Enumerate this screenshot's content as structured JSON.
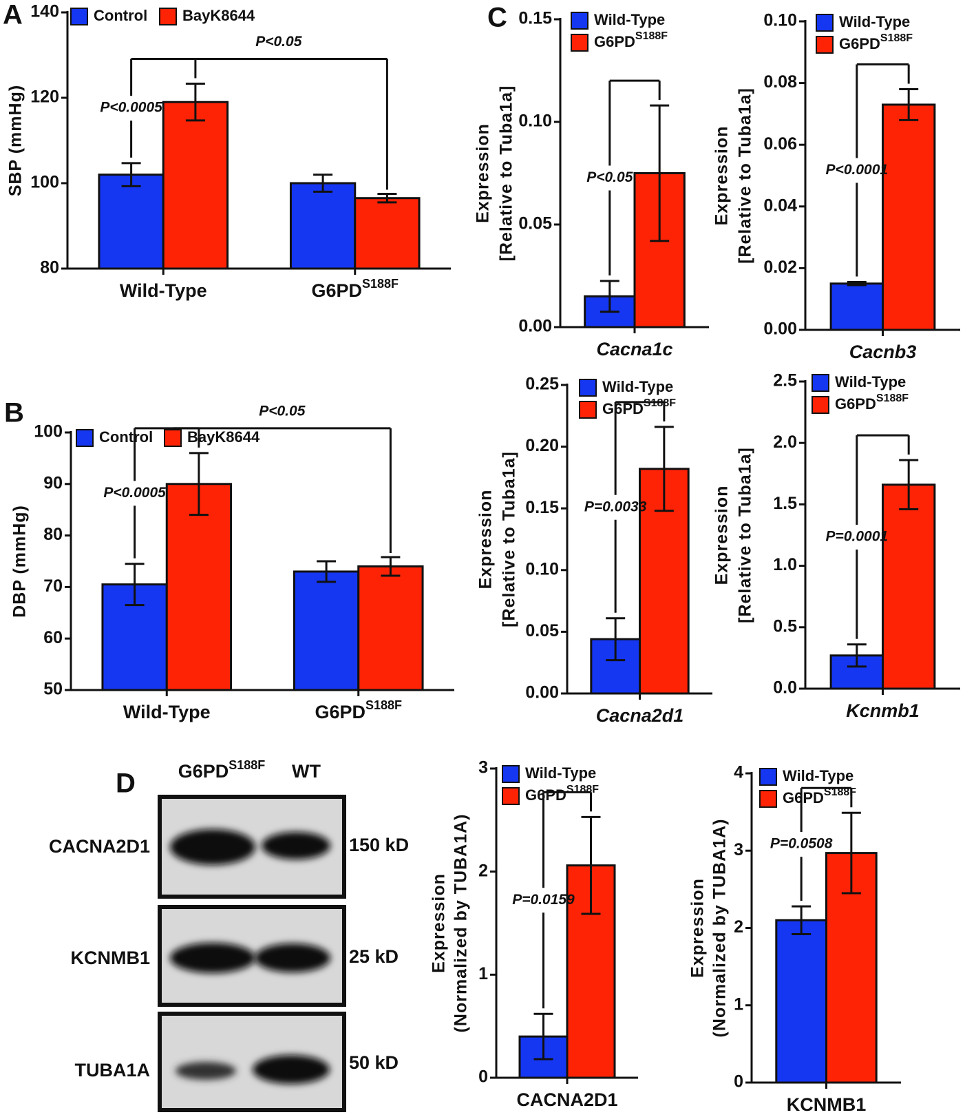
{
  "chart_data": [
    {
      "type": "bar",
      "panel": "A",
      "ylabel": "SBP (mmHg)",
      "categories": [
        "Wild-Type",
        "G6PD"
      ],
      "category_superscripts": [
        null,
        "S188F"
      ],
      "series": [
        {
          "name": "Control",
          "color": "#1537f2",
          "values": [
            102,
            100
          ],
          "errors": [
            2.7,
            2
          ]
        },
        {
          "name": "BayK8644",
          "color": "#ff2306",
          "values": [
            119,
            96.5
          ],
          "errors": [
            4.3,
            1
          ]
        }
      ],
      "ylim": [
        80,
        140
      ],
      "yticks": [
        80,
        100,
        120,
        140
      ],
      "annotations": [
        "P<0.0005",
        "P<0.05"
      ],
      "legend": "top-left"
    },
    {
      "type": "bar",
      "panel": "B",
      "ylabel": "DBP (mmHg)",
      "categories": [
        "Wild-Type",
        "G6PD"
      ],
      "category_superscripts": [
        null,
        "S188F"
      ],
      "series": [
        {
          "name": "Control",
          "color": "#1537f2",
          "values": [
            70.5,
            73
          ],
          "errors": [
            4,
            2
          ]
        },
        {
          "name": "BayK8644",
          "color": "#ff2306",
          "values": [
            90,
            74
          ],
          "errors": [
            6,
            1.8
          ]
        }
      ],
      "ylim": [
        50,
        100
      ],
      "yticks": [
        50,
        60,
        70,
        80,
        90,
        100
      ],
      "annotations": [
        "P<0.0005",
        "P<0.05"
      ],
      "legend": "top-left"
    },
    {
      "type": "bar",
      "panel": "C",
      "ylabel": [
        "Expression",
        "[Relative to Tuba1a]"
      ],
      "categories": [
        "Cacna1c"
      ],
      "series": [
        {
          "name": "Wild-Type",
          "color": "#1537f2",
          "values": [
            0.015
          ],
          "errors": [
            0.0075
          ]
        },
        {
          "name": "G6PD",
          "name_superscript": "S188F",
          "color": "#ff2306",
          "values": [
            0.075
          ],
          "errors": [
            0.033
          ]
        }
      ],
      "ylim": [
        0,
        0.15
      ],
      "yticks": [
        {
          "value": 0,
          "label": "0.00"
        },
        0.05,
        {
          "value": 0.1,
          "label": "0.10"
        },
        0.15
      ],
      "annotations": [
        "P<0.05"
      ],
      "legend": "top-left"
    },
    {
      "type": "bar",
      "ylabel": [
        "Expression",
        "[Relative to Tuba1a]"
      ],
      "categories": [
        "Cacnb3"
      ],
      "series": [
        {
          "name": "Wild-Type",
          "color": "#1537f2",
          "values": [
            0.015
          ],
          "errors": [
            0.0005
          ]
        },
        {
          "name": "G6PD",
          "name_superscript": "S188F",
          "color": "#ff2306",
          "values": [
            0.073
          ],
          "errors": [
            0.005
          ]
        }
      ],
      "ylim": [
        0,
        0.1
      ],
      "yticks": [
        {
          "value": 0,
          "label": "0.00"
        },
        0.02,
        0.04,
        0.06,
        0.08,
        {
          "value": 0.1,
          "label": "0.10"
        }
      ],
      "annotations": [
        "P<0.0001"
      ],
      "legend": "top-left"
    },
    {
      "type": "bar",
      "ylabel": [
        "Expression",
        "[Relative to Tuba1a]"
      ],
      "categories": [
        "Cacna2d1"
      ],
      "series": [
        {
          "name": "Wild-Type",
          "color": "#1537f2",
          "values": [
            0.044
          ],
          "errors": [
            0.017
          ]
        },
        {
          "name": "G6PD",
          "name_superscript": "S188F",
          "color": "#ff2306",
          "values": [
            0.182
          ],
          "errors": [
            0.034
          ]
        }
      ],
      "ylim": [
        0,
        0.25
      ],
      "yticks": [
        {
          "value": 0,
          "label": "0.00"
        },
        0.05,
        {
          "value": 0.1,
          "label": "0.10"
        },
        0.15,
        {
          "value": 0.2,
          "label": "0.20"
        },
        0.25
      ],
      "annotations": [
        "P=0.0033"
      ],
      "legend": "top-left"
    },
    {
      "type": "bar",
      "ylabel": [
        "Expression",
        "[Relative to Tuba1a]"
      ],
      "categories": [
        "Kcnmb1"
      ],
      "series": [
        {
          "name": "Wild-Type",
          "color": "#1537f2",
          "values": [
            0.27
          ],
          "errors": [
            0.09
          ]
        },
        {
          "name": "G6PD",
          "name_superscript": "S188F",
          "color": "#ff2306",
          "values": [
            1.66
          ],
          "errors": [
            0.2
          ]
        }
      ],
      "ylim": [
        0,
        2.5
      ],
      "yticks": [
        {
          "value": 0,
          "label": "0.0"
        },
        0.5,
        {
          "value": 1,
          "label": "1.0"
        },
        1.5,
        {
          "value": 2,
          "label": "2.0"
        },
        2.5
      ],
      "annotations": [
        "P=0.0001"
      ],
      "legend": "top-left"
    },
    {
      "type": "bar",
      "ylabel": [
        "Expression",
        "(Normalized by TUBA1A)"
      ],
      "categories": [
        "CACNA2D1"
      ],
      "series": [
        {
          "name": "Wild-Type",
          "color": "#1537f2",
          "values": [
            0.4
          ],
          "errors": [
            0.22
          ]
        },
        {
          "name": "G6PD",
          "name_superscript": "S188F",
          "color": "#ff2306",
          "values": [
            2.06
          ],
          "errors": [
            0.47
          ]
        }
      ],
      "ylim": [
        0,
        3
      ],
      "yticks": [
        0,
        1,
        2,
        3
      ],
      "annotations": [
        "P=0.0159"
      ],
      "legend": "top-left"
    },
    {
      "type": "bar",
      "ylabel": [
        "Expression",
        "(Normalized by TUBA1A)"
      ],
      "categories": [
        "KCNMB1"
      ],
      "series": [
        {
          "name": "Wild-Type",
          "color": "#1537f2",
          "values": [
            2.1
          ],
          "errors": [
            0.18
          ]
        },
        {
          "name": "G6PD",
          "name_superscript": "S188F",
          "color": "#ff2306",
          "values": [
            2.97
          ],
          "errors": [
            0.52
          ]
        }
      ],
      "ylim": [
        0,
        4
      ],
      "yticks": [
        0,
        1,
        2,
        3,
        4
      ],
      "annotations": [
        "P=0.0508"
      ],
      "legend": "top-left"
    }
  ],
  "blot": {
    "panel": "D",
    "columns": [
      {
        "name": "G6PD",
        "superscript": "S188F"
      },
      {
        "name": "WT"
      }
    ],
    "rows": [
      {
        "protein": "CACNA2D1",
        "size": "150 kD"
      },
      {
        "protein": "KCNMB1",
        "size": "25 kD"
      },
      {
        "protein": "TUBA1A",
        "size": "50 kD"
      }
    ]
  }
}
